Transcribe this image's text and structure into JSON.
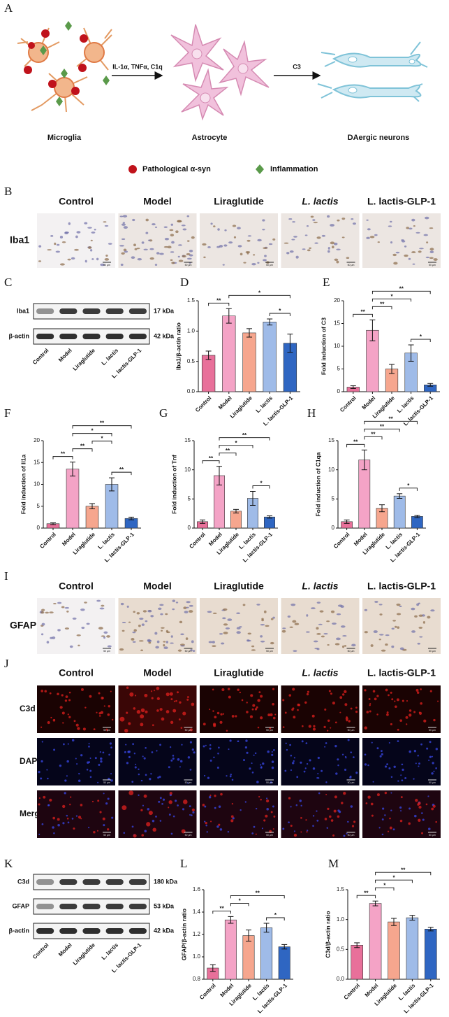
{
  "diagram": {
    "letter": "A",
    "arrow1": "IL-1α, TNFα, C1q",
    "arrow2": "C3",
    "cells": [
      "Microglia",
      "Astrocyte",
      "DAergic neurons"
    ],
    "legend": [
      "Pathological α-syn",
      "Inflammation"
    ]
  },
  "ihc_iba1": {
    "letter": "B",
    "columns": [
      "Control",
      "Model",
      "Liraglutide",
      "L. lactis",
      "L. lactis-GLP-1"
    ],
    "row_label": "Iba1",
    "scale_bar": "50 μm"
  },
  "blot_iba1": {
    "letter": "C",
    "rows": [
      {
        "name": "Iba1",
        "size": "17 kDa"
      },
      {
        "name": "β-actin",
        "size": "42 kDa"
      }
    ],
    "lanes": [
      "Control",
      "Model",
      "Liraglutide",
      "L. lactis",
      "L. lactis-GLP-1"
    ]
  },
  "chart_data": [
    {
      "type": "bar",
      "letter": "D",
      "y_label": "Iba1/β-actin ratio",
      "categories": [
        "Control",
        "Model",
        "Liraglutide",
        "L. lactis",
        "L. lactis-GLP-1"
      ],
      "values": [
        0.6,
        1.25,
        0.97,
        1.15,
        0.8
      ],
      "errors": [
        0.07,
        0.12,
        0.07,
        0.05,
        0.15
      ],
      "colors": [
        "#e8709a",
        "#f4a3c6",
        "#f6a68e",
        "#9fbbe8",
        "#2f66c2"
      ],
      "ylim": [
        0,
        1.5
      ],
      "yticks": [
        {
          "value": 0,
          "label": "0.0"
        },
        0.5,
        {
          "value": 1,
          "label": "1.0"
        },
        1.5
      ],
      "significance": [
        {
          "between": [
            0,
            1
          ],
          "label": "**"
        },
        {
          "between": [
            3,
            4
          ],
          "label": "*"
        },
        {
          "between": [
            1,
            4
          ],
          "label": "*"
        }
      ]
    },
    {
      "type": "bar",
      "letter": "E",
      "y_label": "Fold induction of C3",
      "categories": [
        "Control",
        "Model",
        "Liraglutide",
        "L. lactis",
        "L. lactis-GLP-1"
      ],
      "values": [
        1,
        13.5,
        5,
        8.5,
        1.5
      ],
      "errors": [
        0.3,
        2.3,
        1,
        1.8,
        0.3
      ],
      "colors": [
        "#e8709a",
        "#f4a3c6",
        "#f6a68e",
        "#9fbbe8",
        "#2f66c2"
      ],
      "ylim": [
        0,
        20
      ],
      "yticks": [
        0,
        5,
        10,
        15,
        20
      ],
      "significance": [
        {
          "between": [
            0,
            1
          ],
          "label": "**"
        },
        {
          "between": [
            1,
            2
          ],
          "label": "**"
        },
        {
          "between": [
            3,
            4
          ],
          "label": "*"
        },
        {
          "between": [
            1,
            3
          ],
          "label": "*"
        },
        {
          "between": [
            1,
            4
          ],
          "label": "**"
        }
      ]
    },
    {
      "type": "bar",
      "letter": "F",
      "y_label": "Fold induction of Il1a",
      "categories": [
        "Control",
        "Model",
        "Liraglutide",
        "L. lactis",
        "L. lactis-GLP-1"
      ],
      "values": [
        1,
        13.5,
        5,
        10,
        2.2
      ],
      "errors": [
        0.2,
        1.6,
        0.6,
        1.5,
        0.3
      ],
      "colors": [
        "#e8709a",
        "#f4a3c6",
        "#f6a68e",
        "#9fbbe8",
        "#2f66c2"
      ],
      "ylim": [
        0,
        20
      ],
      "yticks": [
        0,
        5,
        10,
        15,
        20
      ],
      "significance": [
        {
          "between": [
            0,
            1
          ],
          "label": "**"
        },
        {
          "between": [
            1,
            2
          ],
          "label": "**"
        },
        {
          "between": [
            3,
            4
          ],
          "label": "**"
        },
        {
          "between": [
            2,
            3
          ],
          "label": "*"
        },
        {
          "between": [
            1,
            3
          ],
          "label": "*"
        },
        {
          "between": [
            1,
            4
          ],
          "label": "**"
        }
      ]
    },
    {
      "type": "bar",
      "letter": "G",
      "y_label": "Fold induction of Tnf",
      "categories": [
        "Control",
        "Model",
        "Liraglutide",
        "L. lactis",
        "L. lactis-GLP-1"
      ],
      "values": [
        1.1,
        9,
        2.9,
        5.1,
        1.9
      ],
      "errors": [
        0.3,
        1.6,
        0.3,
        1.2,
        0.2
      ],
      "colors": [
        "#e8709a",
        "#f4a3c6",
        "#f6a68e",
        "#9fbbe8",
        "#2f66c2"
      ],
      "ylim": [
        0,
        15
      ],
      "yticks": [
        0,
        5,
        10,
        15
      ],
      "significance": [
        {
          "between": [
            0,
            1
          ],
          "label": "**"
        },
        {
          "between": [
            1,
            2
          ],
          "label": "**"
        },
        {
          "between": [
            3,
            4
          ],
          "label": "*"
        },
        {
          "between": [
            1,
            3
          ],
          "label": "*"
        },
        {
          "between": [
            1,
            4
          ],
          "label": "**"
        }
      ]
    },
    {
      "type": "bar",
      "letter": "H",
      "y_label": "Fold induction of C1qa",
      "categories": [
        "Control",
        "Model",
        "Liraglutide",
        "L. lactis",
        "L. lactis-GLP-1"
      ],
      "values": [
        1.1,
        11.7,
        3.4,
        5.5,
        2
      ],
      "errors": [
        0.3,
        1.7,
        0.6,
        0.4,
        0.2
      ],
      "colors": [
        "#e8709a",
        "#f4a3c6",
        "#f6a68e",
        "#9fbbe8",
        "#2f66c2"
      ],
      "ylim": [
        0,
        15
      ],
      "yticks": [
        0,
        5,
        10,
        15
      ],
      "significance": [
        {
          "between": [
            0,
            1
          ],
          "label": "**"
        },
        {
          "between": [
            1,
            2
          ],
          "label": "**"
        },
        {
          "between": [
            3,
            4
          ],
          "label": "*"
        },
        {
          "between": [
            1,
            3
          ],
          "label": "**"
        },
        {
          "between": [
            1,
            4
          ],
          "label": "**"
        }
      ]
    },
    {
      "type": "bar",
      "letter": "L",
      "y_label": "GFAP/β-actin ratio",
      "categories": [
        "Control",
        "Model",
        "Liraglutide",
        "L. lactis",
        "L. lactis-GLP-1"
      ],
      "values": [
        0.9,
        1.33,
        1.19,
        1.26,
        1.09
      ],
      "errors": [
        0.03,
        0.03,
        0.05,
        0.04,
        0.02
      ],
      "colors": [
        "#e8709a",
        "#f4a3c6",
        "#f6a68e",
        "#9fbbe8",
        "#2f66c2"
      ],
      "ylim": [
        0.8,
        1.6
      ],
      "yticks": [
        0.8,
        {
          "value": 1,
          "label": "1.0"
        },
        1.2,
        1.4,
        1.6
      ],
      "significance": [
        {
          "between": [
            0,
            1
          ],
          "label": "**"
        },
        {
          "between": [
            1,
            2
          ],
          "label": "*"
        },
        {
          "between": [
            3,
            4
          ],
          "label": "*"
        },
        {
          "between": [
            1,
            4
          ],
          "label": "**"
        }
      ]
    },
    {
      "type": "bar",
      "letter": "M",
      "y_label": "C3d/β-actin ratio",
      "categories": [
        "Control",
        "Model",
        "Liraglutide",
        "L. lactis",
        "L. lactis-GLP-1"
      ],
      "values": [
        0.57,
        1.27,
        0.96,
        1.03,
        0.84
      ],
      "errors": [
        0.04,
        0.04,
        0.06,
        0.04,
        0.03
      ],
      "colors": [
        "#e8709a",
        "#f4a3c6",
        "#f6a68e",
        "#9fbbe8",
        "#2f66c2"
      ],
      "ylim": [
        0,
        1.5
      ],
      "yticks": [
        {
          "value": 0,
          "label": "0.0"
        },
        0.5,
        {
          "value": 1,
          "label": "1.0"
        },
        1.5
      ],
      "significance": [
        {
          "between": [
            0,
            1
          ],
          "label": "**"
        },
        {
          "between": [
            1,
            2
          ],
          "label": "*"
        },
        {
          "between": [
            1,
            3
          ],
          "label": "*"
        },
        {
          "between": [
            1,
            4
          ],
          "label": "**"
        }
      ]
    }
  ],
  "ihc_gfap": {
    "letter": "I",
    "columns": [
      "Control",
      "Model",
      "Liraglutide",
      "L. lactis",
      "L. lactis-GLP-1"
    ],
    "row_label": "GFAP",
    "scale_bar": "50 μm"
  },
  "if_c3d": {
    "letter": "J",
    "columns": [
      "Control",
      "Model",
      "Liraglutide",
      "L. lactis",
      "L. lactis-GLP-1"
    ],
    "rows": [
      "C3d",
      "DAPI",
      "Merge"
    ],
    "scale_bar": "50 μm"
  },
  "blot_k": {
    "letter": "K",
    "rows": [
      {
        "name": "C3d",
        "size": "180 kDa"
      },
      {
        "name": "GFAP",
        "size": "53 kDa"
      },
      {
        "name": "β-actin",
        "size": "42 kDa"
      }
    ],
    "lanes": [
      "Control",
      "Model",
      "Liraglutide",
      "L. lactis",
      "L. lactis-GLP-1"
    ]
  }
}
